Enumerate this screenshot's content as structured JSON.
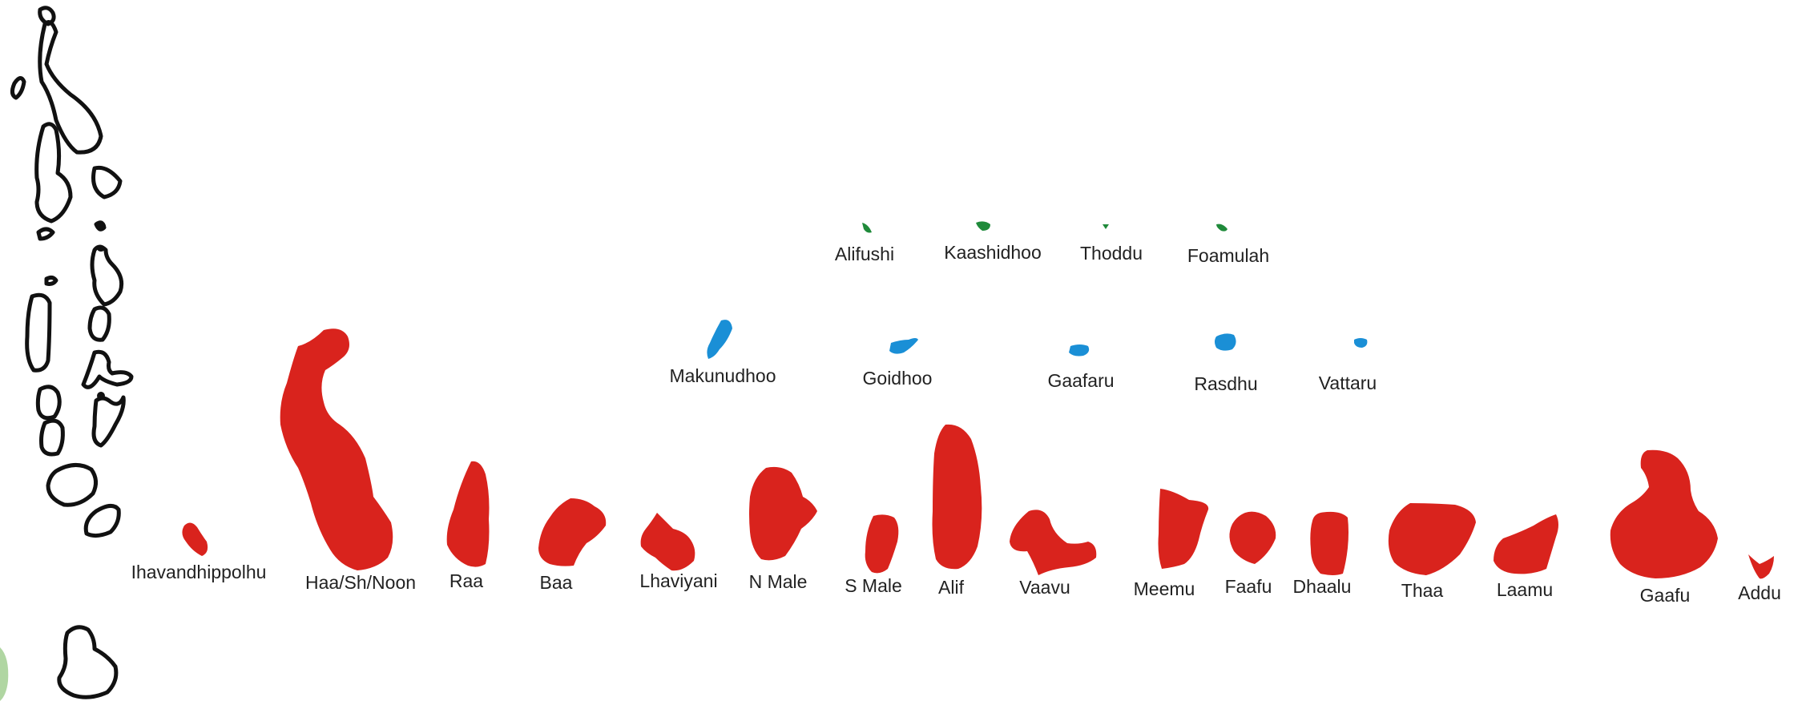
{
  "colors": {
    "outline": "#111111",
    "large_atolls": "#d9231d",
    "small_atolls": "#1a8fd6",
    "islands": "#1f8a3a",
    "label_text": "#222222",
    "corner_leaf": "#8fc47a"
  },
  "islands": [
    {
      "label": "Alifushi"
    },
    {
      "label": "Kaashidhoo"
    },
    {
      "label": "Thoddu"
    },
    {
      "label": "Foamulah"
    }
  ],
  "small_atolls": [
    {
      "label": "Makunudhoo"
    },
    {
      "label": "Goidhoo"
    },
    {
      "label": "Gaafaru"
    },
    {
      "label": "Rasdhu"
    },
    {
      "label": "Vattaru"
    }
  ],
  "large_atolls": [
    {
      "label": "Ihavandhippolhu"
    },
    {
      "label": "Haa/Sh/Noon"
    },
    {
      "label": "Raa"
    },
    {
      "label": "Baa"
    },
    {
      "label": "Lhaviyani"
    },
    {
      "label": "N Male"
    },
    {
      "label": "S Male"
    },
    {
      "label": "Alif"
    },
    {
      "label": "Vaavu"
    },
    {
      "label": "Meemu"
    },
    {
      "label": "Faafu"
    },
    {
      "label": "Dhaalu"
    },
    {
      "label": "Thaa"
    },
    {
      "label": "Laamu"
    },
    {
      "label": "Gaafu"
    },
    {
      "label": "Addu"
    }
  ]
}
